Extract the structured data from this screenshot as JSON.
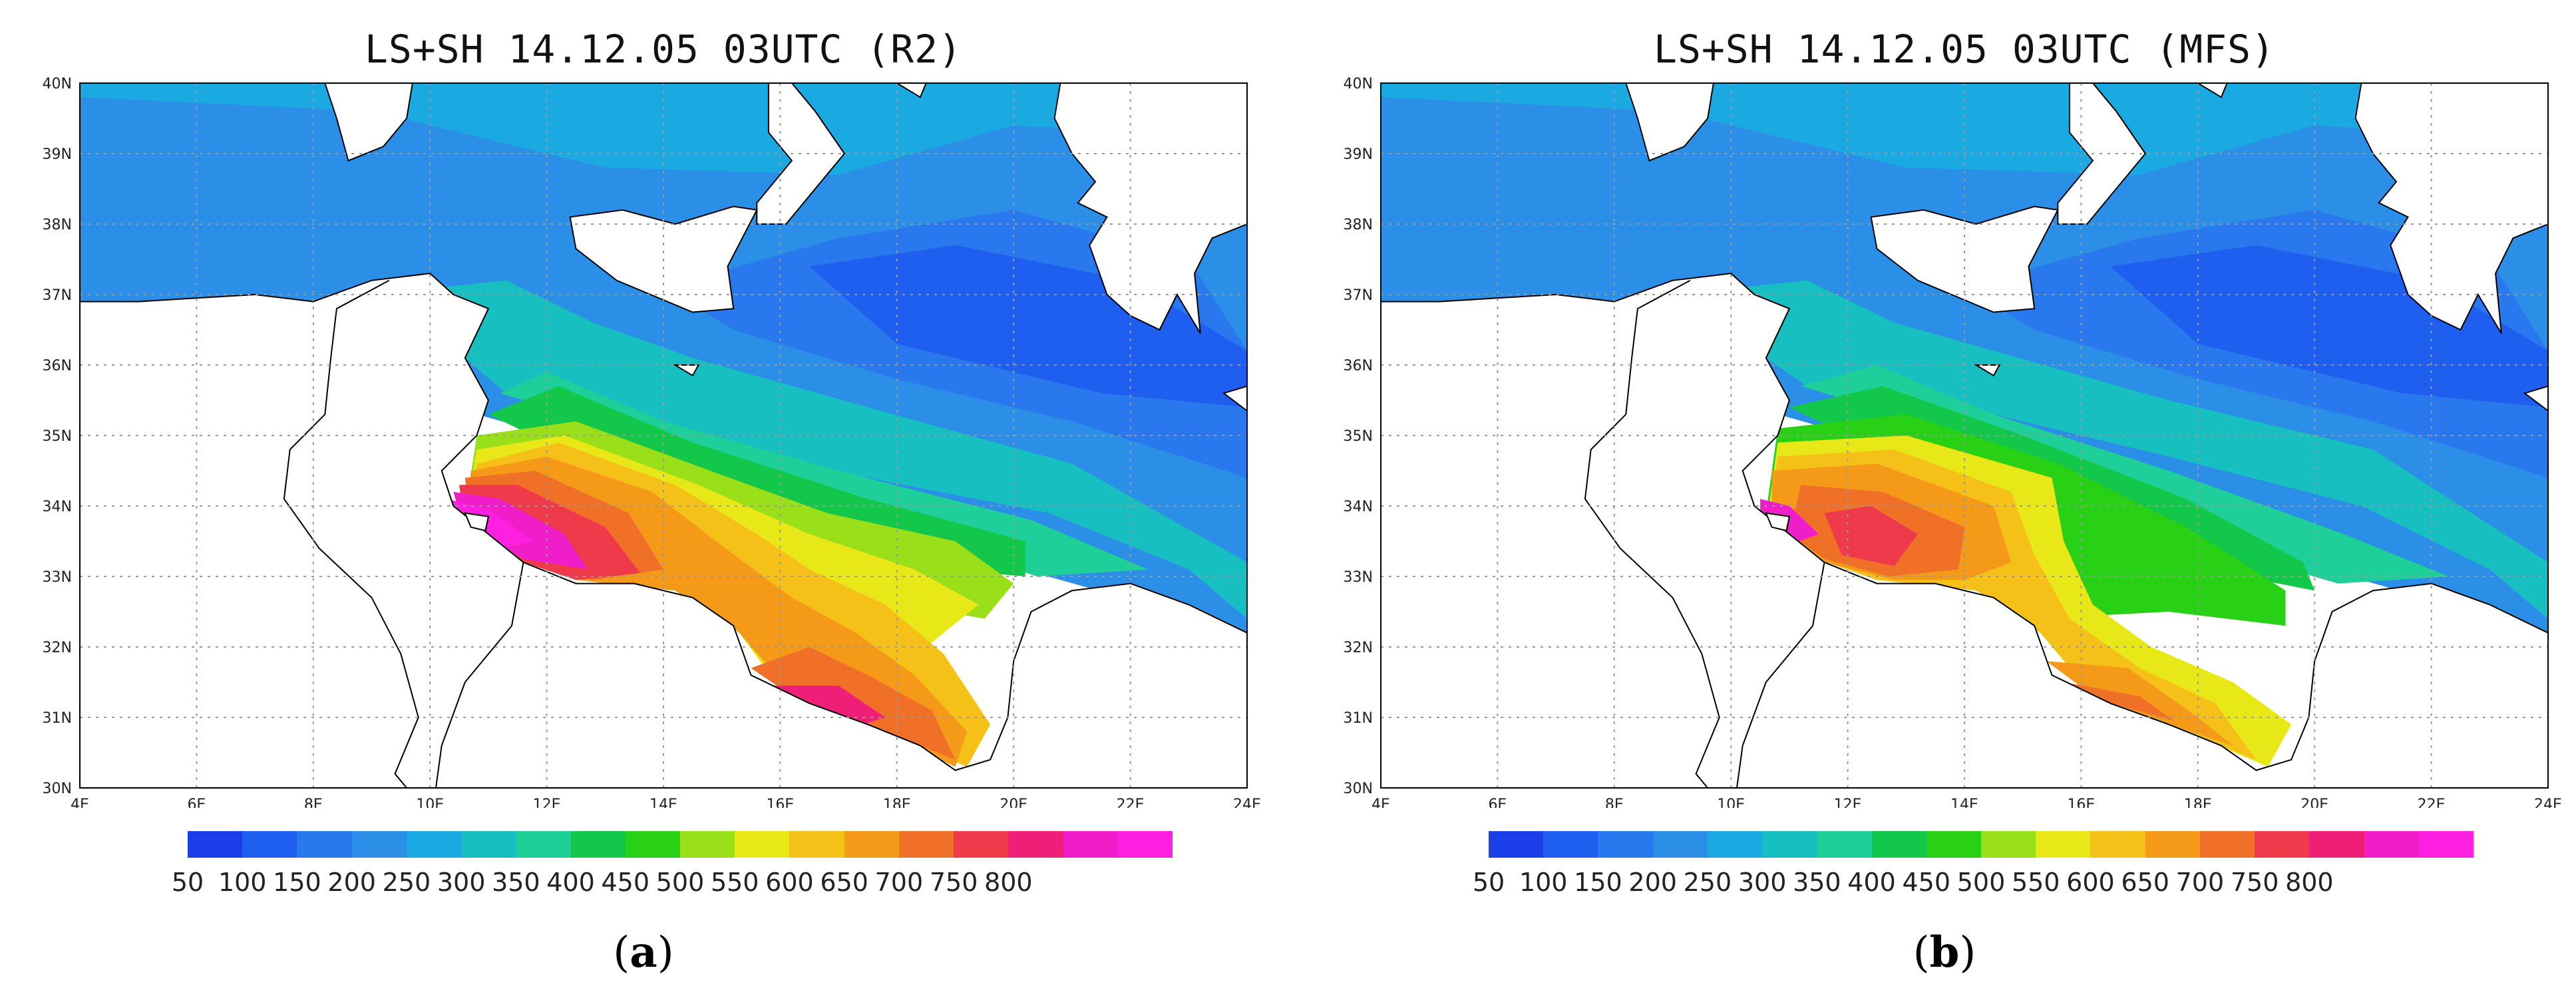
{
  "panels": [
    {
      "id": "a",
      "title": "LS+SH 14.12.05 03UTC (R2)",
      "caption_open": "(",
      "caption_letter": "a",
      "caption_close": ")"
    },
    {
      "id": "b",
      "title": "LS+SH 14.12.05 03UTC (MFS)",
      "caption_open": "(",
      "caption_letter": "b",
      "caption_close": ")"
    }
  ],
  "map": {
    "lat_labels": [
      "30N",
      "31N",
      "32N",
      "33N",
      "34N",
      "35N",
      "36N",
      "37N",
      "38N",
      "39N",
      "40N"
    ],
    "lon_labels": [
      "4E",
      "6E",
      "8E",
      "10E",
      "12E",
      "14E",
      "16E",
      "18E",
      "20E",
      "22E",
      "24E"
    ],
    "land_color": "#ffffff",
    "coast_color": "#000000",
    "grid_color": "#9a9a9a"
  },
  "colorbar": {
    "labels": [
      "50",
      "100",
      "150",
      "200",
      "250",
      "300",
      "350",
      "400",
      "450",
      "500",
      "550",
      "600",
      "650",
      "700",
      "750",
      "800"
    ],
    "colors": [
      "#1a3ee8",
      "#1f5ff0",
      "#2a78ee",
      "#2b8fe8",
      "#1aa9e0",
      "#18bfc0",
      "#1fcf9a",
      "#12c74a",
      "#28d016",
      "#9ae01a",
      "#e8e818",
      "#f5c018",
      "#f59a18",
      "#f07028",
      "#ee3a4a",
      "#ef1f78",
      "#f01ec8",
      "#ff1fe0"
    ]
  }
}
